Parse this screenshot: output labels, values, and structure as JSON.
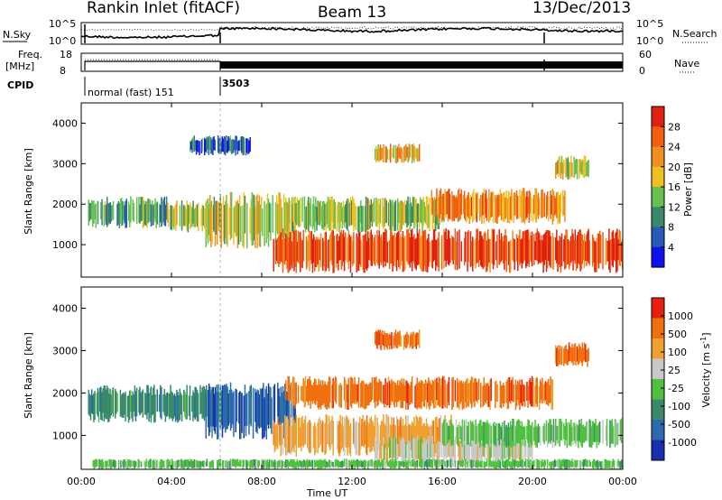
{
  "header": {
    "title": "Rankin Inlet (fitACF)",
    "beam": "Beam 13",
    "date": "13/Dec/2013"
  },
  "panels": {
    "nsky": {
      "label": "N.Sky",
      "ticks": [
        "10^5",
        "10^0"
      ],
      "right_label": "N.Search",
      "right_ticks": [
        "10^5",
        "10^0"
      ]
    },
    "freq": {
      "label_line1": "Freq.",
      "label_line2": "[MHz]",
      "ticks": [
        "18",
        "8"
      ],
      "right_label": "Nave",
      "right_ticks": [
        "60",
        "0"
      ]
    },
    "cpid": {
      "label": "CPID",
      "segments": [
        "normal (fast) 151",
        "3503"
      ]
    }
  },
  "colors": {
    "power_scale": [
      "#1010ee",
      "#2858b8",
      "#3a8a6a",
      "#68c050",
      "#f0c020",
      "#f09020",
      "#f06010",
      "#e02010"
    ],
    "velocity_scale": [
      "#1830b0",
      "#2a6ab0",
      "#3a8a6a",
      "#50c040",
      "#c8c8c8",
      "#f0a030",
      "#f07010",
      "#e82010"
    ]
  },
  "chart_data": [
    {
      "type": "heatmap",
      "name": "power",
      "ylabel": "Slant Range [km]",
      "xlabel": "Time UT",
      "y_ticks": [
        "1000",
        "2000",
        "3000",
        "4000"
      ],
      "x_ticks": [
        "00:00",
        "04:00",
        "08:00",
        "12:00",
        "16:00",
        "20:00",
        "00:00"
      ],
      "xlim": [
        0,
        24
      ],
      "ylim": [
        200,
        4500
      ],
      "colorbar": {
        "label": "Power [dB]",
        "ticks": [
          "28",
          "24",
          "20",
          "16",
          "12",
          "8",
          "4"
        ],
        "range": [
          0,
          32
        ]
      },
      "regions": [
        {
          "t0": 0.3,
          "t1": 3.8,
          "r0": 1400,
          "r1": 2200,
          "level": 0.35
        },
        {
          "t0": 3.8,
          "t1": 6.2,
          "r0": 1300,
          "r1": 2100,
          "level": 0.45
        },
        {
          "t0": 5.5,
          "t1": 9.5,
          "r0": 900,
          "r1": 2300,
          "level": 0.5
        },
        {
          "t0": 8.5,
          "t1": 24.0,
          "r0": 300,
          "r1": 1400,
          "level": 0.9
        },
        {
          "t0": 9.0,
          "t1": 16.0,
          "r0": 1300,
          "r1": 2200,
          "level": 0.45
        },
        {
          "t0": 13.0,
          "t1": 15.0,
          "r0": 3000,
          "r1": 3500,
          "level": 0.6
        },
        {
          "t0": 15.5,
          "t1": 21.5,
          "r0": 1500,
          "r1": 2400,
          "level": 0.75
        },
        {
          "t0": 21.0,
          "t1": 22.5,
          "r0": 2600,
          "r1": 3200,
          "level": 0.55
        },
        {
          "t0": 4.8,
          "t1": 7.5,
          "r0": 3200,
          "r1": 3700,
          "level": 0.2
        }
      ]
    },
    {
      "type": "heatmap",
      "name": "velocity",
      "ylabel": "Slant Range [km]",
      "xlabel": "Time UT",
      "y_ticks": [
        "1000",
        "2000",
        "3000",
        "4000"
      ],
      "x_ticks": [
        "00:00",
        "04:00",
        "08:00",
        "12:00",
        "16:00",
        "20:00",
        "00:00"
      ],
      "xlim": [
        0,
        24
      ],
      "ylim": [
        200,
        4500
      ],
      "colorbar": {
        "label": "Velocity [m s",
        "label_sup": "-1",
        "label_end": "]",
        "ticks": [
          "1000",
          "500",
          "100",
          "25",
          "-25",
          "-100",
          "-500",
          "-1000"
        ]
      },
      "regions": [
        {
          "t0": 0.3,
          "t1": 6.2,
          "r0": 1300,
          "r1": 2200,
          "class": 2
        },
        {
          "t0": 5.5,
          "t1": 9.5,
          "r0": 900,
          "r1": 2300,
          "class": 1
        },
        {
          "t0": 8.5,
          "t1": 16.5,
          "r0": 500,
          "r1": 1500,
          "class": 5
        },
        {
          "t0": 13.0,
          "t1": 20.0,
          "r0": 300,
          "r1": 1000,
          "class": 4
        },
        {
          "t0": 0.5,
          "t1": 24.0,
          "r0": 200,
          "r1": 450,
          "class": 3
        },
        {
          "t0": 16.0,
          "t1": 24.0,
          "r0": 700,
          "r1": 1400,
          "class": 3
        },
        {
          "t0": 13.0,
          "t1": 15.0,
          "r0": 3000,
          "r1": 3500,
          "class": 6
        },
        {
          "t0": 9.0,
          "t1": 21.0,
          "r0": 1600,
          "r1": 2400,
          "class": 6
        },
        {
          "t0": 21.0,
          "t1": 22.5,
          "r0": 2600,
          "r1": 3200,
          "class": 6
        }
      ]
    }
  ]
}
